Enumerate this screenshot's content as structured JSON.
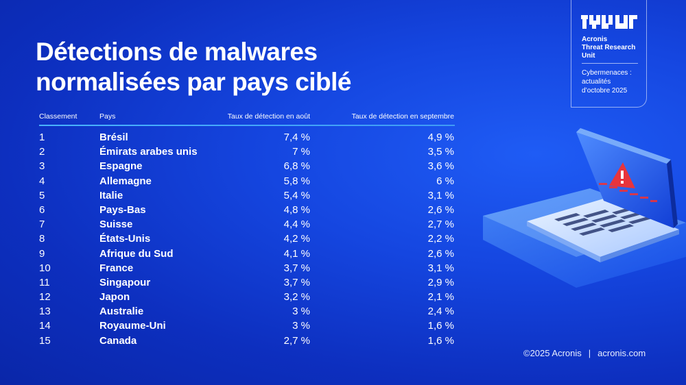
{
  "title": {
    "line1": "Détections de malwares",
    "line2": "normalisées par pays ciblé"
  },
  "brand": {
    "logo_icon": "tru-logo-icon",
    "name_line1": "Acronis",
    "name_line2": "Threat Research",
    "name_line3": "Unit",
    "sub_line1": "Cybermenaces :",
    "sub_line2": "actualités",
    "sub_line3": "d’octobre 2025"
  },
  "table": {
    "headers": {
      "rank": "Classement",
      "country": "Pays",
      "august": "Taux de détection en août",
      "september": "Taux de détection en septembre"
    },
    "rows": [
      {
        "rank": "1",
        "country": "Brésil",
        "august": "7,4 %",
        "september": "4,9 %"
      },
      {
        "rank": "2",
        "country": "Émirats arabes unis",
        "august": "7 %",
        "september": "3,5 %"
      },
      {
        "rank": "3",
        "country": "Espagne",
        "august": "6,8 %",
        "september": "3,6 %"
      },
      {
        "rank": "4",
        "country": "Allemagne",
        "august": "5,8 %",
        "september": "6 %"
      },
      {
        "rank": "5",
        "country": "Italie",
        "august": "5,4 %",
        "september": "3,1 %"
      },
      {
        "rank": "6",
        "country": "Pays-Bas",
        "august": "4,8 %",
        "september": "2,6 %"
      },
      {
        "rank": "7",
        "country": "Suisse",
        "august": "4,4 %",
        "september": "2,7 %"
      },
      {
        "rank": "8",
        "country": "États-Unis",
        "august": "4,2 %",
        "september": "2,2 %"
      },
      {
        "rank": "9",
        "country": "Afrique du Sud",
        "august": "4,1 %",
        "september": "2,6 %"
      },
      {
        "rank": "10",
        "country": "France",
        "august": "3,7 %",
        "september": "3,1 %"
      },
      {
        "rank": "11",
        "country": "Singapour",
        "august": "3,7 %",
        "september": "2,9 %"
      },
      {
        "rank": "12",
        "country": "Japon",
        "august": "3,2 %",
        "september": "2,1 %"
      },
      {
        "rank": "13",
        "country": "Australie",
        "august": "3 %",
        "september": "2,4 %"
      },
      {
        "rank": "14",
        "country": "Royaume-Uni",
        "august": "3 %",
        "september": "1,6 %"
      },
      {
        "rank": "15",
        "country": "Canada",
        "august": "2,7 %",
        "september": "1,6 %"
      }
    ]
  },
  "chart_data": {
    "type": "table",
    "columns": [
      "Classement",
      "Pays",
      "Taux de détection en août",
      "Taux de détection en septembre"
    ],
    "categories": [
      "Brésil",
      "Émirats arabes unis",
      "Espagne",
      "Allemagne",
      "Italie",
      "Pays-Bas",
      "Suisse",
      "États-Unis",
      "Afrique du Sud",
      "France",
      "Singapour",
      "Japon",
      "Australie",
      "Royaume-Uni",
      "Canada"
    ],
    "series": [
      {
        "name": "Taux de détection en août",
        "values": [
          7.4,
          7,
          6.8,
          5.8,
          5.4,
          4.8,
          4.4,
          4.2,
          4.1,
          3.7,
          3.7,
          3.2,
          3,
          3,
          2.7
        ]
      },
      {
        "name": "Taux de détection en septembre",
        "values": [
          4.9,
          3.5,
          3.6,
          6,
          3.1,
          2.6,
          2.7,
          2.2,
          2.6,
          3.1,
          2.9,
          2.1,
          2.4,
          1.6,
          1.6
        ]
      }
    ]
  },
  "illustration": {
    "icon": "laptop-warning-icon",
    "alert_icon": "warning-triangle-icon"
  },
  "footer": {
    "copyright": "©2025 Acronis",
    "separator": "|",
    "website": "acronis.com"
  },
  "colors": {
    "background": "#1546e0",
    "accent_rule": "#49b4ff",
    "warning": "#e8343c"
  }
}
